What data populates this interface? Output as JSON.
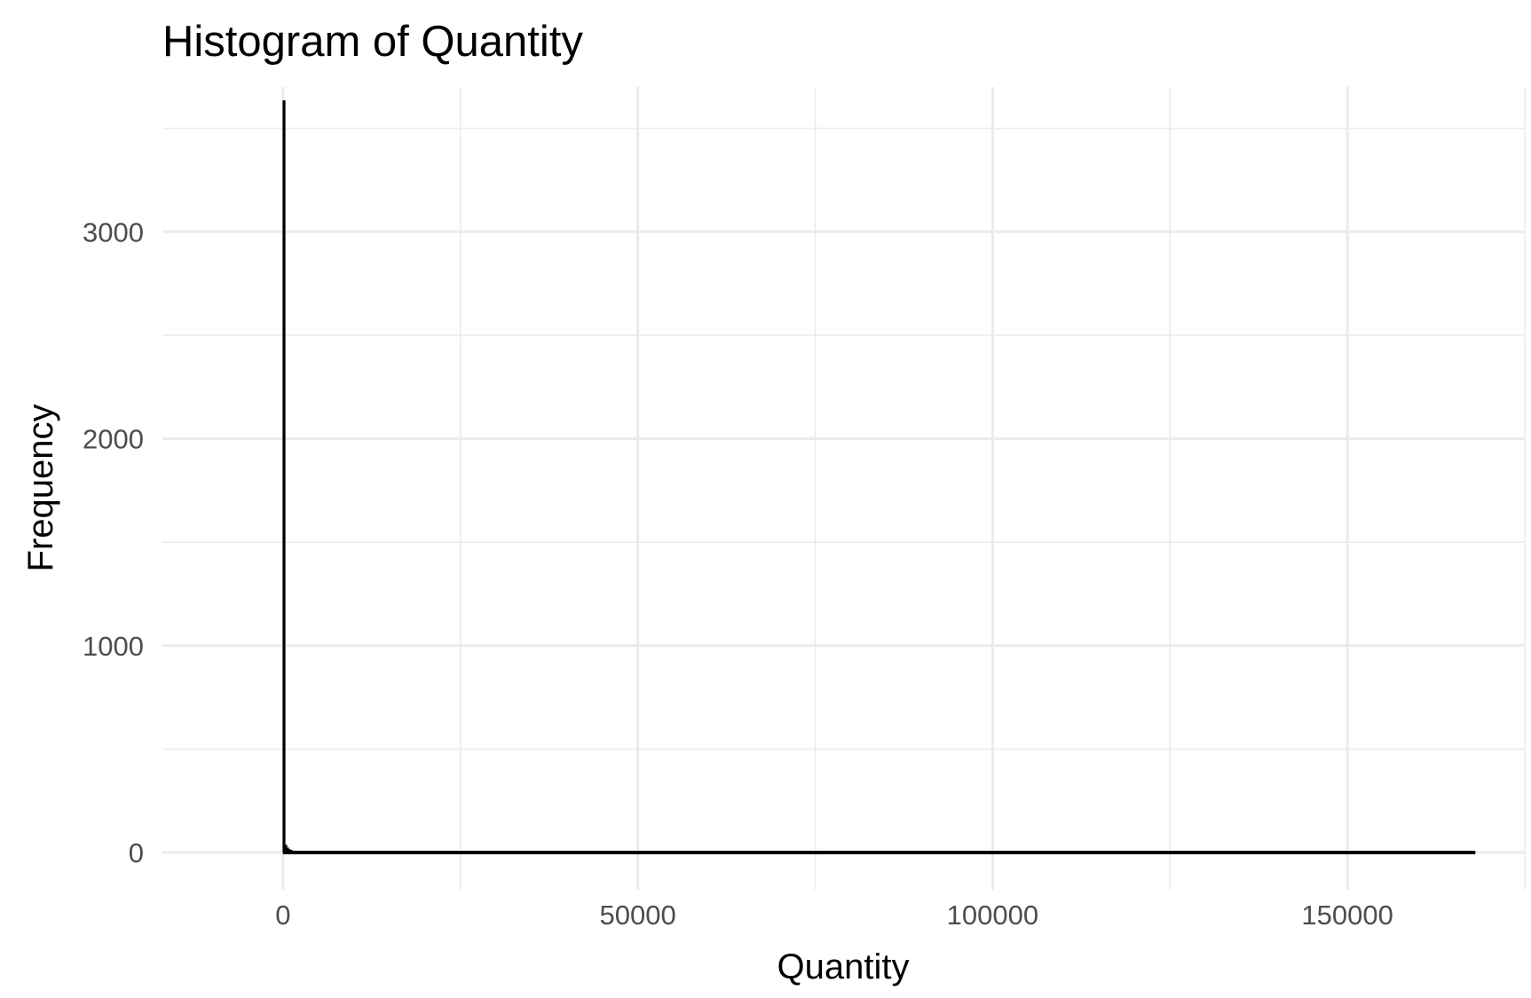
{
  "chart_data": {
    "type": "bar",
    "title": "Histogram of Quantity",
    "xlabel": "Quantity",
    "ylabel": "Frequency",
    "xlim": [
      -17000,
      175000
    ],
    "ylim": [
      -180,
      3700
    ],
    "x_ticks": [
      0,
      50000,
      100000,
      150000
    ],
    "x_tick_labels": [
      "0",
      "50000",
      "100000",
      "150000"
    ],
    "x_minor_ticks": [
      25000,
      75000,
      125000,
      175000
    ],
    "y_ticks": [
      0,
      1000,
      2000,
      3000
    ],
    "y_tick_labels": [
      "0",
      "1000",
      "2000",
      "3000"
    ],
    "y_minor_ticks": [
      500,
      1500,
      2500,
      3500
    ],
    "grid": true,
    "bar_color": "#000000",
    "bin_width": 250,
    "bins": [
      {
        "x0": 0,
        "x1": 250,
        "count": 3633
      },
      {
        "x0": 250,
        "x1": 500,
        "count": 35
      },
      {
        "x0": 500,
        "x1": 750,
        "count": 22
      },
      {
        "x0": 750,
        "x1": 1000,
        "count": 14
      },
      {
        "x0": 1000,
        "x1": 1250,
        "count": 10
      },
      {
        "x0": 1250,
        "x1": 1500,
        "count": 7
      },
      {
        "x0": 1500,
        "x1": 1750,
        "count": 5
      },
      {
        "x0": 1750,
        "x1": 2000,
        "count": 4
      },
      {
        "x0": 2000,
        "x1": 2250,
        "count": 3
      },
      {
        "x0": 2250,
        "x1": 2500,
        "count": 2
      },
      {
        "x0": 2500,
        "x1": 2750,
        "count": 2
      },
      {
        "x0": 6750,
        "x1": 7000,
        "count": 6
      },
      {
        "x0": 7250,
        "x1": 7500,
        "count": 3
      },
      {
        "x0": 15000,
        "x1": 15250,
        "count": 5
      },
      {
        "x0": 167750,
        "x1": 168000,
        "count": 1
      }
    ],
    "baseline_extent": [
      0,
      168000
    ]
  }
}
